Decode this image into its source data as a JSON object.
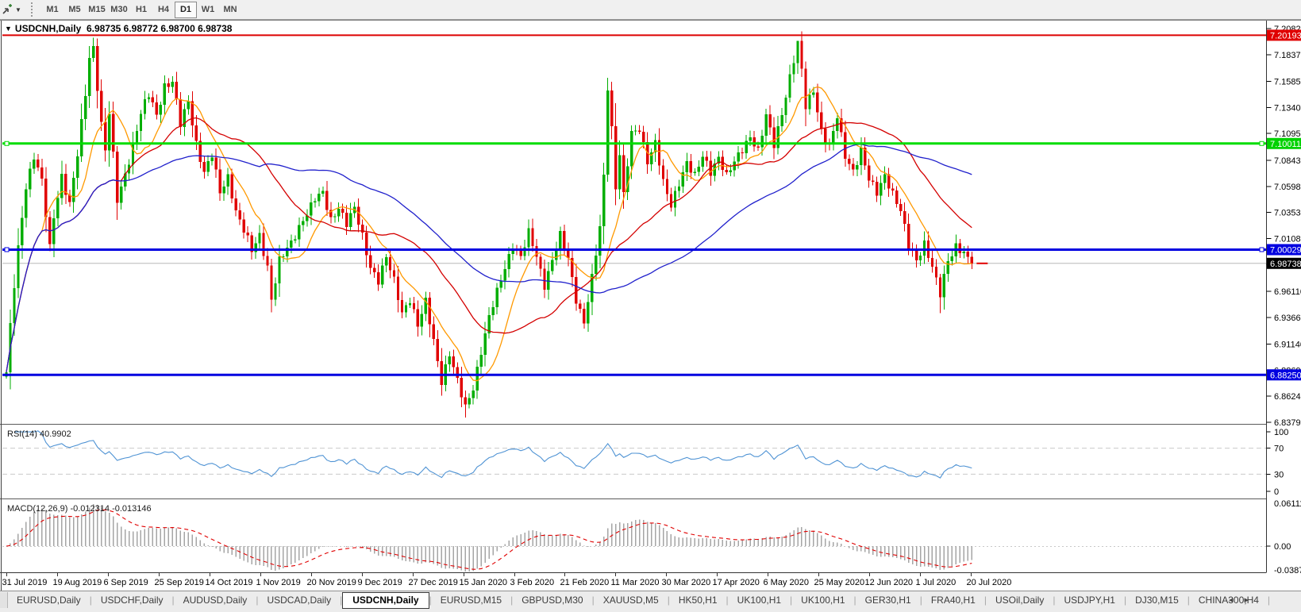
{
  "toolbar": {
    "tool_icon": "chart-pointer",
    "timeframes": [
      "M1",
      "M5",
      "M15",
      "M30",
      "H1",
      "H4",
      "D1",
      "W1",
      "MN"
    ],
    "active_timeframe": "D1"
  },
  "chart_header": {
    "collapse_arrow": "▼",
    "symbol": "USDCNH,Daily",
    "ohlc_text": "6.98735 6.98772 6.98700 6.98738"
  },
  "indicator_labels": {
    "rsi": "RSI(14) 40.9902",
    "macd": "MACD(12,26,9) -0.012314 -0.013146"
  },
  "price_axis": {
    "ticks": [
      "7.20820",
      "7.18370",
      "7.15850",
      "7.13400",
      "7.10950",
      "7.08430",
      "7.05980",
      "7.03530",
      "7.01080",
      "6.98630",
      "6.96110",
      "6.93660",
      "6.91140",
      "6.88690",
      "6.86240",
      "6.83790"
    ],
    "level_labels": [
      {
        "text": "7.20193",
        "price": 7.20193,
        "bg": "#e00000",
        "fg": "#ffffff"
      },
      {
        "text": "7.10011",
        "price": 7.10011,
        "bg": "#00d200",
        "fg": "#ffffff"
      },
      {
        "text": "7.00029",
        "price": 7.00029,
        "bg": "#0000e0",
        "fg": "#ffffff"
      },
      {
        "text": "6.98738",
        "price": 6.98738,
        "bg": "#000000",
        "fg": "#ffffff"
      },
      {
        "text": "6.88250",
        "price": 6.8825,
        "bg": "#0000e0",
        "fg": "#ffffff"
      }
    ]
  },
  "rsi_axis": [
    {
      "text": "100",
      "value": 100
    },
    {
      "text": "70",
      "value": 70
    },
    {
      "text": "30",
      "value": 30
    },
    {
      "text": "0",
      "value": 0
    }
  ],
  "macd_axis": {
    "top": "0.061119",
    "zero": "0.00",
    "bottom": "-0.038777"
  },
  "date_axis": [
    "31 Jul 2019",
    "19 Aug 2019",
    "6 Sep 2019",
    "25 Sep 2019",
    "14 Oct 2019",
    "1 Nov 2019",
    "20 Nov 2019",
    "9 Dec 2019",
    "27 Dec 2019",
    "15 Jan 2020",
    "3 Feb 2020",
    "21 Feb 2020",
    "11 Mar 2020",
    "30 Mar 2020",
    "17 Apr 2020",
    "6 May 2020",
    "25 May 2020",
    "12 Jun 2020",
    "1 Jul 2020",
    "20 Jul 2020"
  ],
  "tabbar": {
    "items": [
      "EURUSD,Daily",
      "USDCHF,Daily",
      "AUDUSD,Daily",
      "USDCAD,Daily",
      "USDCNH,Daily",
      "EURUSD,M15",
      "GBPUSD,M30",
      "XAUUSD,M5",
      "HK50,H1",
      "UK100,H1",
      "UK100,H1",
      "GER30,H1",
      "FRA40,H1",
      "USOil,Daily",
      "USDJPY,H1",
      "DJ30,M15",
      "CHINA300,H4"
    ],
    "active_index": 4,
    "nav_left": "◂",
    "nav_right": "▸"
  },
  "chart_data": {
    "type": "candlestick",
    "symbol": "USDCNH",
    "timeframe": "Daily",
    "current_bar": {
      "open": 6.98735,
      "high": 6.98772,
      "low": 6.987,
      "close": 6.98738
    },
    "y_range": {
      "top": 7.2082,
      "bottom": 6.8379
    },
    "x_range": {
      "start": "31 Jul 2019",
      "end": "20 Jul 2020"
    },
    "bar_count": 245,
    "levels": [
      {
        "price": 7.20193,
        "color": "#dd0000",
        "width": 2,
        "markers": false
      },
      {
        "price": 7.10011,
        "color": "#00dd00",
        "width": 3,
        "markers": true
      },
      {
        "price": 7.00029,
        "color": "#0000e0",
        "width": 3,
        "markers": true
      },
      {
        "price": 6.8825,
        "color": "#0000e0",
        "width": 3,
        "markers": false
      }
    ],
    "current_price": 6.98738,
    "close_anchors": [
      [
        0,
        6.885
      ],
      [
        1,
        6.93
      ],
      [
        3,
        7.0
      ],
      [
        5,
        7.06
      ],
      [
        7,
        7.09
      ],
      [
        9,
        7.065
      ],
      [
        11,
        7.0
      ],
      [
        12,
        7.03
      ],
      [
        14,
        7.07
      ],
      [
        16,
        7.045
      ],
      [
        18,
        7.09
      ],
      [
        20,
        7.145
      ],
      [
        21,
        7.18
      ],
      [
        22,
        7.19
      ],
      [
        24,
        7.12
      ],
      [
        25,
        7.095
      ],
      [
        26,
        7.13
      ],
      [
        28,
        7.045
      ],
      [
        30,
        7.07
      ],
      [
        32,
        7.1
      ],
      [
        34,
        7.13
      ],
      [
        36,
        7.145
      ],
      [
        38,
        7.125
      ],
      [
        40,
        7.155
      ],
      [
        42,
        7.16
      ],
      [
        44,
        7.118
      ],
      [
        46,
        7.138
      ],
      [
        48,
        7.1
      ],
      [
        50,
        7.075
      ],
      [
        52,
        7.09
      ],
      [
        54,
        7.052
      ],
      [
        56,
        7.068
      ],
      [
        58,
        7.038
      ],
      [
        60,
        7.02
      ],
      [
        62,
        6.998
      ],
      [
        64,
        7.012
      ],
      [
        66,
        6.985
      ],
      [
        67,
        6.955
      ],
      [
        69,
        6.99
      ],
      [
        72,
        7.005
      ],
      [
        75,
        7.03
      ],
      [
        78,
        7.048
      ],
      [
        80,
        7.052
      ],
      [
        82,
        7.028
      ],
      [
        84,
        7.042
      ],
      [
        86,
        7.025
      ],
      [
        88,
        7.038
      ],
      [
        90,
        7.012
      ],
      [
        92,
        6.985
      ],
      [
        94,
        6.972
      ],
      [
        96,
        6.992
      ],
      [
        98,
        6.97
      ],
      [
        100,
        6.942
      ],
      [
        102,
        6.955
      ],
      [
        104,
        6.928
      ],
      [
        106,
        6.95
      ],
      [
        108,
        6.915
      ],
      [
        110,
        6.878
      ],
      [
        112,
        6.902
      ],
      [
        114,
        6.875
      ],
      [
        116,
        6.852
      ],
      [
        118,
        6.872
      ],
      [
        120,
        6.905
      ],
      [
        122,
        6.935
      ],
      [
        124,
        6.96
      ],
      [
        126,
        6.985
      ],
      [
        128,
        7.005
      ],
      [
        130,
        6.992
      ],
      [
        132,
        7.015
      ],
      [
        134,
        6.995
      ],
      [
        136,
        6.968
      ],
      [
        138,
        6.99
      ],
      [
        140,
        7.012
      ],
      [
        142,
        6.992
      ],
      [
        144,
        6.955
      ],
      [
        146,
        6.932
      ],
      [
        148,
        6.972
      ],
      [
        150,
        7.02
      ],
      [
        151,
        7.07
      ],
      [
        152,
        7.155
      ],
      [
        153,
        7.115
      ],
      [
        154,
        7.06
      ],
      [
        155,
        7.09
      ],
      [
        156,
        7.05
      ],
      [
        157,
        7.08
      ],
      [
        158,
        7.108
      ],
      [
        160,
        7.115
      ],
      [
        162,
        7.085
      ],
      [
        164,
        7.1
      ],
      [
        166,
        7.062
      ],
      [
        168,
        7.042
      ],
      [
        170,
        7.065
      ],
      [
        172,
        7.082
      ],
      [
        174,
        7.068
      ],
      [
        176,
        7.088
      ],
      [
        178,
        7.075
      ],
      [
        180,
        7.088
      ],
      [
        182,
        7.068
      ],
      [
        184,
        7.082
      ],
      [
        186,
        7.096
      ],
      [
        188,
        7.108
      ],
      [
        190,
        7.092
      ],
      [
        192,
        7.125
      ],
      [
        194,
        7.1
      ],
      [
        196,
        7.13
      ],
      [
        198,
        7.162
      ],
      [
        200,
        7.193
      ],
      [
        201,
        7.168
      ],
      [
        202,
        7.135
      ],
      [
        204,
        7.152
      ],
      [
        206,
        7.112
      ],
      [
        208,
        7.095
      ],
      [
        210,
        7.125
      ],
      [
        212,
        7.09
      ],
      [
        214,
        7.075
      ],
      [
        216,
        7.092
      ],
      [
        218,
        7.065
      ],
      [
        220,
        7.055
      ],
      [
        222,
        7.072
      ],
      [
        224,
        7.052
      ],
      [
        226,
        7.035
      ],
      [
        228,
        7.005
      ],
      [
        230,
        6.992
      ],
      [
        232,
        7.006
      ],
      [
        234,
        6.982
      ],
      [
        236,
        6.958
      ],
      [
        238,
        6.992
      ],
      [
        240,
        7.004
      ],
      [
        242,
        6.996
      ],
      [
        244,
        6.98738
      ]
    ],
    "wick_marks": [
      {
        "i": 22,
        "high": 7.1995
      },
      {
        "i": 152,
        "high": 7.162
      },
      {
        "i": 200,
        "high": 7.1965
      },
      {
        "i": 116,
        "low": 6.8425
      },
      {
        "i": 236,
        "low": 6.9405
      }
    ],
    "ma_periods": {
      "fast_orange": 10,
      "mid_red": 30,
      "slow_blue": 65
    },
    "indicators": {
      "rsi": {
        "period": 14,
        "current_value": 40.9902,
        "levels": [
          70,
          30
        ],
        "scale": [
          0,
          100
        ]
      },
      "macd": {
        "fast": 12,
        "slow": 26,
        "signal_period": 9,
        "main_value": -0.012314,
        "signal_value": -0.013146,
        "scale_top": 0.061119,
        "scale_bottom": -0.038777
      }
    },
    "colors": {
      "bull": "#00ae00",
      "bear": "#e00000",
      "ma_fast": "#ff9900",
      "ma_mid": "#d40000",
      "ma_slow": "#2020cc",
      "rsi_line": "#4f93d4",
      "macd_hist": "#a5a5a5",
      "macd_signal": "#e00000",
      "current_price_line": "#b8b8b8"
    }
  }
}
